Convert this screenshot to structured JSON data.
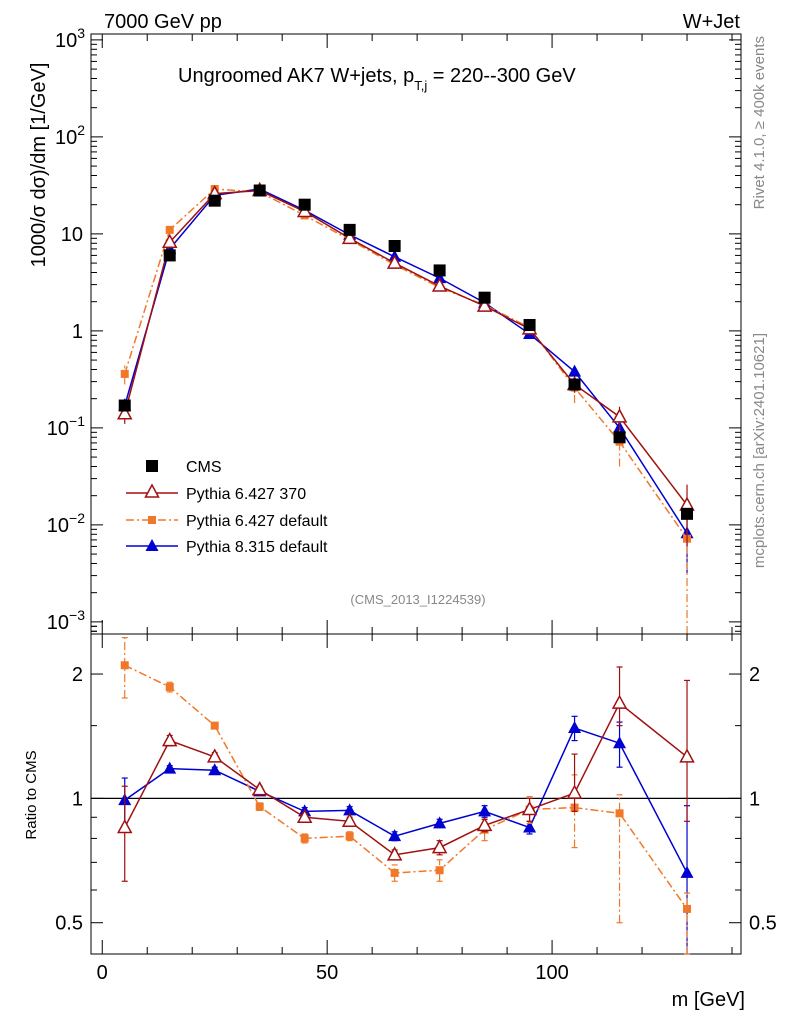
{
  "header": {
    "left": "7000 GeV pp",
    "right": "W+Jet"
  },
  "side_notes": {
    "top": "Rivet 4.1.0, ≥ 400k events",
    "bottom": "mcplots.cern.ch [arXiv:2401.10621]"
  },
  "chart_data": [
    {
      "type": "scatter",
      "panel": "main",
      "title_parts": {
        "main": "Ungroomed AK7 W+jets, p",
        "sub": "T,j",
        "rest": " = 220--300 GeV"
      },
      "ylabel": "1000/σ  dσ)/dm [1/GeV]",
      "yscale": "log",
      "ylim": [
        0.00075,
        1150
      ],
      "xlim": [
        -2.5,
        142
      ],
      "y_tick_labels": [
        {
          "value": 1000,
          "base": "10",
          "exp": "3"
        },
        {
          "value": 100,
          "base": "10",
          "exp": "2"
        },
        {
          "value": 10,
          "base": "10",
          "exp": ""
        },
        {
          "value": 1,
          "base": "1",
          "exp": ""
        },
        {
          "value": 0.1,
          "base": "10",
          "exp": "−1"
        },
        {
          "value": 0.01,
          "base": "10",
          "exp": "−2"
        },
        {
          "value": 0.001,
          "base": "10",
          "exp": "−3"
        }
      ],
      "annotation": "(CMS_2013_I1224539)",
      "legend_placement": "lower-left",
      "series": [
        {
          "name": "CMS",
          "color": "#000000",
          "marker": "square",
          "line": "none",
          "x": [
            5,
            15,
            25,
            35,
            45,
            55,
            65,
            75,
            85,
            95,
            105,
            115,
            130
          ],
          "y": [
            0.17,
            6.0,
            22,
            28,
            20,
            11,
            7.5,
            4.2,
            2.2,
            1.15,
            0.28,
            0.08,
            0.013
          ]
        },
        {
          "name": "Pythia 6.427 370",
          "color": "#a01010",
          "marker": "triangle-open",
          "line": "solid",
          "x": [
            5,
            15,
            25,
            35,
            45,
            55,
            65,
            75,
            85,
            95,
            105,
            115,
            130
          ],
          "y": [
            0.14,
            8.2,
            26,
            28,
            17,
            9.0,
            5.0,
            2.9,
            1.8,
            1.05,
            0.28,
            0.13,
            0.016
          ],
          "err": [
            0.03,
            0.4,
            1,
            1,
            0.8,
            0.4,
            0.25,
            0.15,
            0.1,
            0.08,
            0.05,
            0.035,
            0.01
          ]
        },
        {
          "name": "Pythia 6.427 default",
          "color": "#f07828",
          "marker": "square-small",
          "line": "dashdot",
          "x": [
            5,
            15,
            25,
            35,
            45,
            55,
            65,
            75,
            85,
            95,
            105,
            115,
            130
          ],
          "y": [
            0.36,
            11,
            29,
            27,
            15.5,
            8.7,
            4.8,
            2.8,
            1.85,
            1.08,
            0.26,
            0.072,
            0.0072
          ],
          "err": [
            0.08,
            0.5,
            1.1,
            1,
            0.7,
            0.4,
            0.25,
            0.15,
            0.12,
            0.1,
            0.08,
            0.032,
            0.0071
          ]
        },
        {
          "name": "Pythia 8.315 default",
          "color": "#0000d0",
          "marker": "triangle",
          "line": "solid",
          "x": [
            5,
            15,
            25,
            35,
            45,
            55,
            65,
            75,
            85,
            95,
            105,
            115,
            130
          ],
          "y": [
            0.17,
            7.0,
            25,
            29,
            17.5,
            9.8,
            5.8,
            3.5,
            1.95,
            0.93,
            0.38,
            0.1,
            0.0082
          ],
          "err": [
            0.03,
            0.35,
            1,
            1,
            0.8,
            0.45,
            0.3,
            0.18,
            0.12,
            0.07,
            0.05,
            0.025,
            0.005
          ]
        }
      ]
    },
    {
      "type": "scatter",
      "panel": "ratio",
      "ylabel": "Ratio to CMS",
      "xlabel": "m [GeV]",
      "yscale": "log",
      "ylim": [
        0.42,
        2.5
      ],
      "xlim": [
        -2.5,
        142
      ],
      "reference_line": 1,
      "y_tick_labels": [
        {
          "value": 2,
          "label": "2"
        },
        {
          "value": 1,
          "label": "1"
        },
        {
          "value": 0.5,
          "label": "0.5"
        }
      ],
      "x_tick_labels": [
        {
          "value": 0,
          "label": "0"
        },
        {
          "value": 50,
          "label": "50"
        },
        {
          "value": 100,
          "label": "100"
        }
      ],
      "series": [
        {
          "name": "Pythia 6.427 370",
          "color": "#a01010",
          "marker": "triangle-open",
          "line": "solid",
          "x": [
            5,
            15,
            25,
            35,
            45,
            55,
            65,
            75,
            85,
            95,
            105,
            115,
            130
          ],
          "y": [
            0.85,
            1.38,
            1.26,
            1.05,
            0.9,
            0.88,
            0.73,
            0.76,
            0.86,
            0.94,
            1.03,
            1.7,
            1.26
          ],
          "err_lo": [
            0.22,
            0.04,
            0.03,
            0.02,
            0.02,
            0.02,
            0.02,
            0.03,
            0.03,
            0.06,
            0.1,
            0.2,
            0.38
          ],
          "err_hi": [
            0.22,
            0.04,
            0.03,
            0.02,
            0.02,
            0.02,
            0.02,
            0.03,
            0.03,
            0.06,
            0.25,
            0.38,
            0.67
          ]
        },
        {
          "name": "Pythia 6.427 default",
          "color": "#f07828",
          "marker": "square-small",
          "line": "dashdot",
          "x": [
            5,
            15,
            25,
            35,
            45,
            55,
            65,
            75,
            85,
            95,
            105,
            115,
            130
          ],
          "y": [
            2.1,
            1.86,
            1.5,
            0.955,
            0.8,
            0.81,
            0.66,
            0.67,
            0.84,
            0.94,
            0.95,
            0.92,
            0.54
          ],
          "err_lo": [
            0.35,
            0.05,
            0.02,
            0.02,
            0.02,
            0.02,
            0.03,
            0.04,
            0.05,
            0.07,
            0.19,
            0.42,
            0.15
          ],
          "err_hi": [
            0.35,
            0.05,
            0.02,
            0.02,
            0.02,
            0.02,
            0.03,
            0.04,
            0.05,
            0.07,
            0.19,
            0.1,
            0.05
          ]
        },
        {
          "name": "Pythia 8.315 default",
          "color": "#0000d0",
          "marker": "triangle",
          "line": "solid",
          "x": [
            5,
            15,
            25,
            35,
            45,
            55,
            65,
            75,
            85,
            95,
            105,
            115,
            130
          ],
          "y": [
            0.99,
            1.18,
            1.17,
            1.04,
            0.93,
            0.935,
            0.81,
            0.87,
            0.93,
            0.85,
            1.48,
            1.36,
            0.66
          ],
          "err_lo": [
            0.13,
            0.02,
            0.02,
            0.02,
            0.02,
            0.02,
            0.02,
            0.02,
            0.03,
            0.03,
            0.1,
            0.17,
            0.3
          ],
          "err_hi": [
            0.13,
            0.02,
            0.02,
            0.02,
            0.02,
            0.02,
            0.02,
            0.02,
            0.03,
            0.03,
            0.1,
            0.17,
            0.3
          ]
        }
      ]
    }
  ]
}
